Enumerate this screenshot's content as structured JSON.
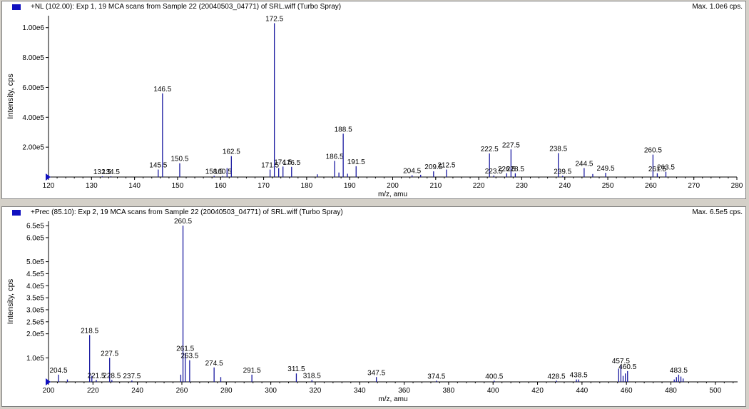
{
  "colors": {
    "series": "#1a1aa0",
    "axis": "#000000",
    "marker": "#1010c0"
  },
  "chart_data": [
    {
      "type": "bar",
      "title": "+NL (102.00): Exp 1, 19 MCA scans from Sample 22 (20040503_04771) of SRL.wiff (Turbo Spray)",
      "max_label": "Max. 1.0e6 cps.",
      "xlabel": "m/z, amu",
      "ylabel": "Intensity, cps",
      "xlim": [
        120,
        280
      ],
      "ylim": [
        0,
        1080000
      ],
      "xticks": [
        120,
        130,
        140,
        150,
        160,
        170,
        180,
        190,
        200,
        210,
        220,
        230,
        240,
        250,
        260,
        270,
        280
      ],
      "yticks": [
        {
          "value": 200000,
          "label": "2.00e5"
        },
        {
          "value": 400000,
          "label": "4.00e5"
        },
        {
          "value": 600000,
          "label": "6.00e5"
        },
        {
          "value": 800000,
          "label": "8.00e5"
        },
        {
          "value": 1000000,
          "label": "1.00e6"
        }
      ],
      "peaks": [
        {
          "x": 132.5,
          "y": 5000,
          "label": "132.5"
        },
        {
          "x": 134.5,
          "y": 5000,
          "label": "134.5"
        },
        {
          "x": 145.5,
          "y": 50000,
          "label": "145.5"
        },
        {
          "x": 146.5,
          "y": 560000,
          "label": "146.5"
        },
        {
          "x": 150.5,
          "y": 92000,
          "label": "150.5"
        },
        {
          "x": 158.5,
          "y": 8000,
          "label": "158.5"
        },
        {
          "x": 160.5,
          "y": 6000,
          "label": "160.5"
        },
        {
          "x": 161.5,
          "y": 60000,
          "label": ""
        },
        {
          "x": 162.5,
          "y": 140000,
          "label": "162.5"
        },
        {
          "x": 171.5,
          "y": 50000,
          "label": "171.5"
        },
        {
          "x": 172.5,
          "y": 1030000,
          "label": "172.5"
        },
        {
          "x": 173.5,
          "y": 60000,
          "label": ""
        },
        {
          "x": 174.5,
          "y": 70000,
          "label": "174.5"
        },
        {
          "x": 176.5,
          "y": 68000,
          "label": "176.5"
        },
        {
          "x": 182.5,
          "y": 18000,
          "label": ""
        },
        {
          "x": 186.5,
          "y": 108000,
          "label": "186.5"
        },
        {
          "x": 187.5,
          "y": 30000,
          "label": ""
        },
        {
          "x": 188.5,
          "y": 290000,
          "label": "188.5"
        },
        {
          "x": 189.5,
          "y": 22000,
          "label": ""
        },
        {
          "x": 191.5,
          "y": 72000,
          "label": "191.5"
        },
        {
          "x": 204.5,
          "y": 12000,
          "label": "204.5"
        },
        {
          "x": 206.5,
          "y": 15000,
          "label": ""
        },
        {
          "x": 209.5,
          "y": 38000,
          "label": "209.5"
        },
        {
          "x": 212.5,
          "y": 50000,
          "label": "212.5"
        },
        {
          "x": 222.5,
          "y": 158000,
          "label": "222.5"
        },
        {
          "x": 223.5,
          "y": 10000,
          "label": "223.5"
        },
        {
          "x": 226.5,
          "y": 25000,
          "label": "226.5"
        },
        {
          "x": 227.5,
          "y": 185000,
          "label": "227.5"
        },
        {
          "x": 228.5,
          "y": 25000,
          "label": "228.5"
        },
        {
          "x": 238.5,
          "y": 160000,
          "label": "238.5"
        },
        {
          "x": 239.5,
          "y": 8000,
          "label": "239.5"
        },
        {
          "x": 244.5,
          "y": 60000,
          "label": "244.5"
        },
        {
          "x": 246.5,
          "y": 20000,
          "label": ""
        },
        {
          "x": 249.5,
          "y": 28000,
          "label": "249.5"
        },
        {
          "x": 260.5,
          "y": 150000,
          "label": "260.5"
        },
        {
          "x": 261.5,
          "y": 25000,
          "label": "261.5"
        },
        {
          "x": 263.5,
          "y": 35000,
          "label": "263.5"
        }
      ]
    },
    {
      "type": "bar",
      "title": "+Prec (85.10): Exp 2, 19 MCA scans from Sample 22 (20040503_04771) of SRL.wiff (Turbo Spray)",
      "max_label": "Max. 6.5e5 cps.",
      "xlabel": "m/z, amu",
      "ylabel": "Intensity, cps",
      "xlim": [
        200,
        510
      ],
      "ylim": [
        0,
        668000
      ],
      "xticks": [
        200,
        220,
        240,
        260,
        280,
        300,
        320,
        340,
        360,
        380,
        400,
        420,
        440,
        460,
        480,
        500
      ],
      "yticks": [
        {
          "value": 100000,
          "label": "1.0e5"
        },
        {
          "value": 200000,
          "label": "2.0e5"
        },
        {
          "value": 250000,
          "label": "2.5e5"
        },
        {
          "value": 300000,
          "label": "3.0e5"
        },
        {
          "value": 350000,
          "label": "3.5e5"
        },
        {
          "value": 400000,
          "label": "4.0e5"
        },
        {
          "value": 450000,
          "label": "4.5e5"
        },
        {
          "value": 500000,
          "label": "5.0e5"
        },
        {
          "value": 600000,
          "label": "6.0e5"
        },
        {
          "value": 650000,
          "label": "6.5e5"
        }
      ],
      "peaks": [
        {
          "x": 204.5,
          "y": 30000,
          "label": "204.5"
        },
        {
          "x": 208.5,
          "y": 10000,
          "label": ""
        },
        {
          "x": 218.5,
          "y": 195000,
          "label": "218.5"
        },
        {
          "x": 219.5,
          "y": 25000,
          "label": ""
        },
        {
          "x": 221.5,
          "y": 8000,
          "label": "221.5"
        },
        {
          "x": 227.5,
          "y": 100000,
          "label": "227.5"
        },
        {
          "x": 228.5,
          "y": 8000,
          "label": "228.5"
        },
        {
          "x": 237.5,
          "y": 6000,
          "label": "237.5"
        },
        {
          "x": 259.5,
          "y": 30000,
          "label": ""
        },
        {
          "x": 260.5,
          "y": 650000,
          "label": "260.5"
        },
        {
          "x": 261.5,
          "y": 120000,
          "label": "261.5"
        },
        {
          "x": 263.5,
          "y": 90000,
          "label": "263.5"
        },
        {
          "x": 274.5,
          "y": 60000,
          "label": "274.5"
        },
        {
          "x": 277.5,
          "y": 20000,
          "label": ""
        },
        {
          "x": 291.5,
          "y": 30000,
          "label": "291.5"
        },
        {
          "x": 311.5,
          "y": 35000,
          "label": "311.5"
        },
        {
          "x": 318.5,
          "y": 8000,
          "label": "318.5"
        },
        {
          "x": 347.5,
          "y": 20000,
          "label": "347.5"
        },
        {
          "x": 374.5,
          "y": 5000,
          "label": "374.5"
        },
        {
          "x": 400.5,
          "y": 5000,
          "label": "400.5"
        },
        {
          "x": 428.5,
          "y": 5000,
          "label": "428.5"
        },
        {
          "x": 437.5,
          "y": 10000,
          "label": ""
        },
        {
          "x": 438.5,
          "y": 10000,
          "label": "438.5"
        },
        {
          "x": 456.5,
          "y": 55000,
          "label": ""
        },
        {
          "x": 457.5,
          "y": 68000,
          "label": "457.5"
        },
        {
          "x": 458.5,
          "y": 25000,
          "label": ""
        },
        {
          "x": 459.5,
          "y": 35000,
          "label": ""
        },
        {
          "x": 460.5,
          "y": 45000,
          "label": "460.5"
        },
        {
          "x": 481.5,
          "y": 10000,
          "label": ""
        },
        {
          "x": 482.5,
          "y": 20000,
          "label": ""
        },
        {
          "x": 483.5,
          "y": 30000,
          "label": "483.5"
        },
        {
          "x": 484.5,
          "y": 22000,
          "label": ""
        },
        {
          "x": 485.5,
          "y": 14000,
          "label": ""
        }
      ]
    }
  ]
}
